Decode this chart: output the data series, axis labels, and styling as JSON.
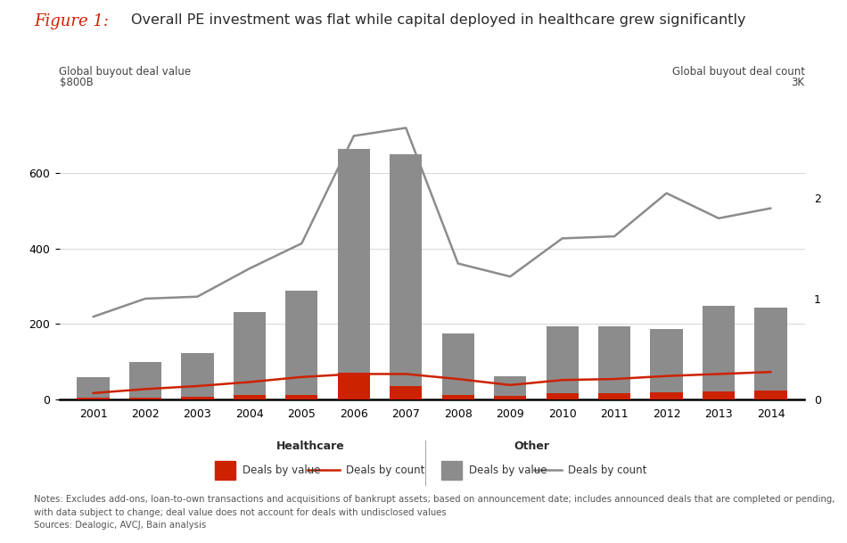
{
  "years": [
    2001,
    2002,
    2003,
    2004,
    2005,
    2006,
    2007,
    2008,
    2009,
    2010,
    2011,
    2012,
    2013,
    2014
  ],
  "other_value": [
    58,
    98,
    122,
    232,
    288,
    665,
    650,
    175,
    60,
    192,
    192,
    185,
    248,
    242
  ],
  "healthcare_value": [
    5,
    5,
    7,
    10,
    12,
    70,
    35,
    10,
    8,
    15,
    15,
    18,
    20,
    22
  ],
  "other_count": [
    0.82,
    1.0,
    1.02,
    1.3,
    1.55,
    2.62,
    2.7,
    1.35,
    1.22,
    1.6,
    1.62,
    2.05,
    1.8,
    1.9
  ],
  "healthcare_count": [
    0.06,
    0.1,
    0.13,
    0.17,
    0.22,
    0.25,
    0.25,
    0.2,
    0.14,
    0.19,
    0.2,
    0.23,
    0.25,
    0.27
  ],
  "bar_color_other": "#8c8c8c",
  "bar_color_healthcare": "#cc2200",
  "line_color_other": "#8c8c8c",
  "line_color_healthcare": "#cc2200",
  "title_italic": "Figure 1:",
  "title_main": "Overall PE investment was flat while capital deployed in healthcare grew significantly",
  "ylabel_left_top": "Global buyout deal value",
  "ylabel_left_unit": "$800B",
  "ylabel_right_top": "Global buyout deal count",
  "ylabel_right_unit": "3K",
  "ylim_left": [
    0,
    800
  ],
  "ylim_right": [
    0,
    3
  ],
  "yticks_left": [
    0,
    200,
    400,
    600
  ],
  "yticks_right": [
    0,
    1,
    2
  ],
  "notes_line1": "Notes: Excludes add-ons, loan-to-own transactions and acquisitions of bankrupt assets; based on announcement date; includes announced deals that are completed or pending,",
  "notes_line2": "with data subject to change; deal value does not account for deals with undisclosed values",
  "notes_line3": "Sources: Dealogic, AVCJ, Bain analysis",
  "background_color": "#ffffff"
}
